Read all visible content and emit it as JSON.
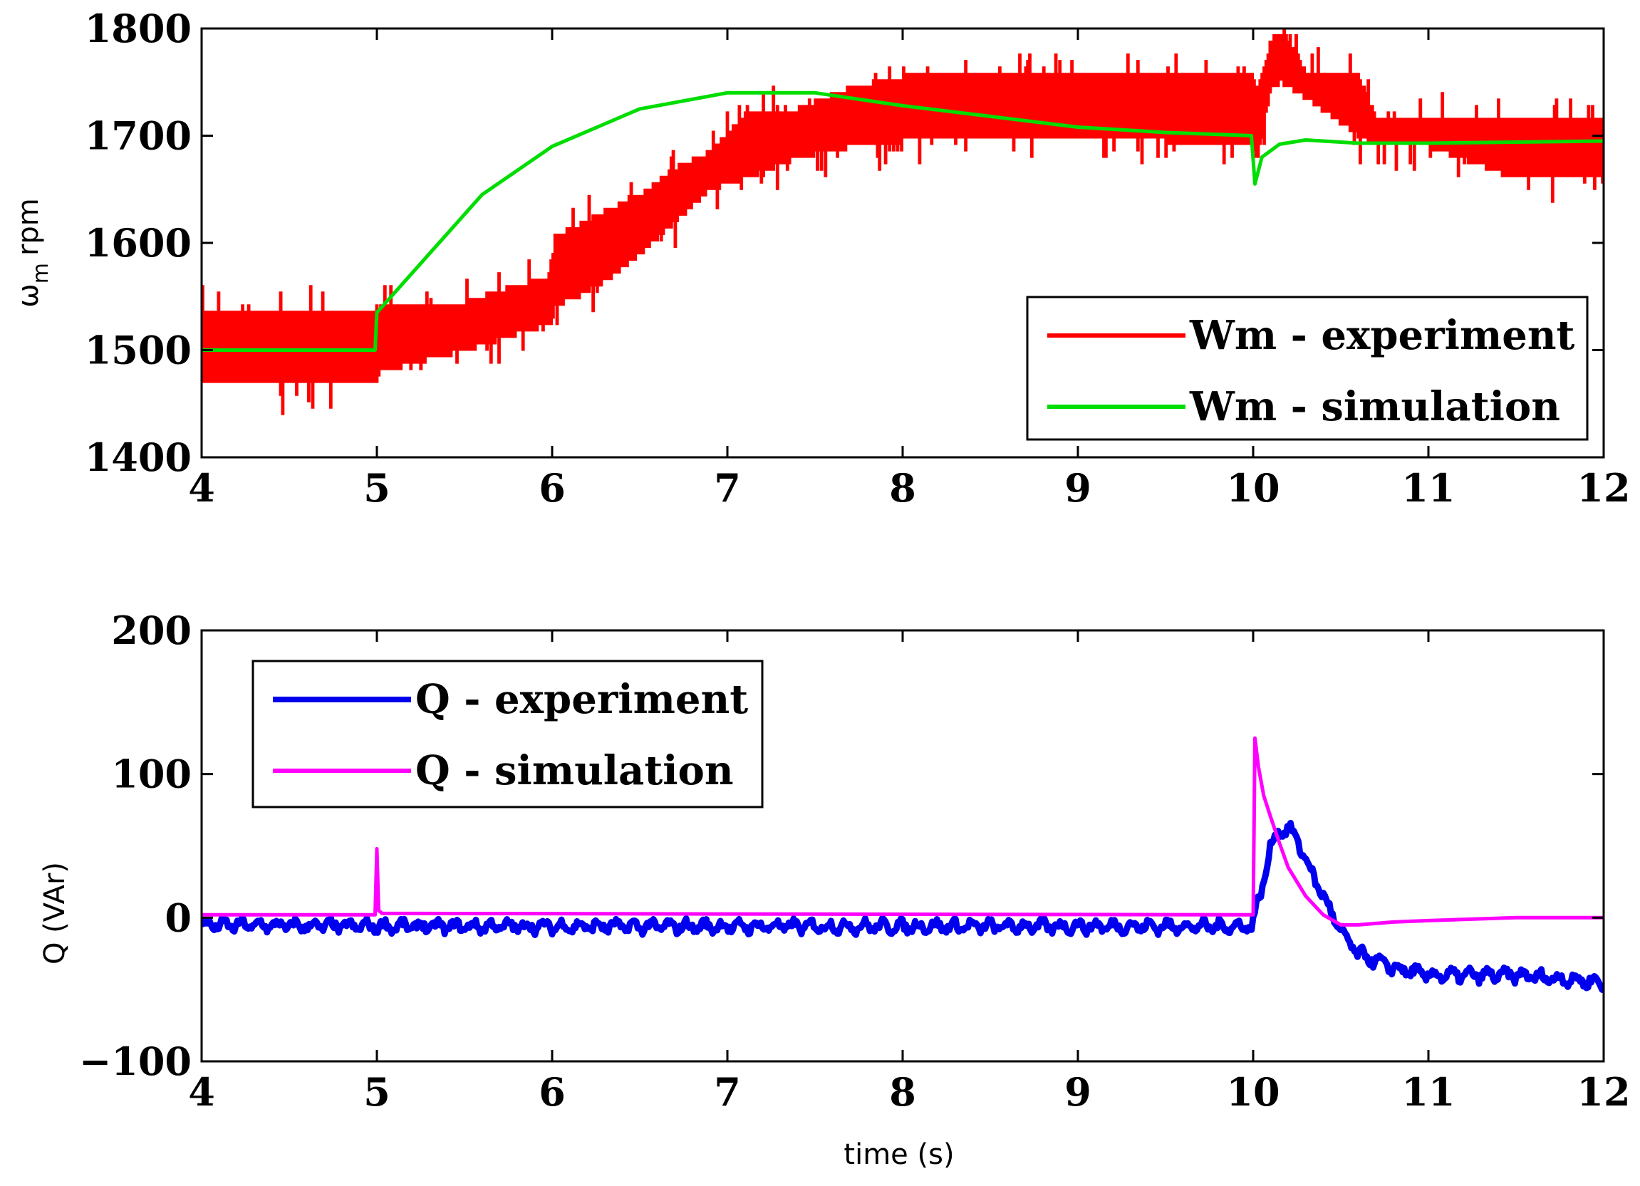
{
  "chart_data": [
    {
      "type": "line",
      "title": "",
      "xlabel": "",
      "ylabel": "ωm rpm",
      "ylabel_parts": {
        "symbol": "ω",
        "subscript": "m",
        "unit": "rpm"
      },
      "xlim": [
        4,
        12
      ],
      "ylim": [
        1400,
        1800
      ],
      "xticks": [
        4,
        5,
        6,
        7,
        8,
        9,
        10,
        11,
        12
      ],
      "yticks": [
        1400,
        1500,
        1600,
        1700,
        1800
      ],
      "legend_position": "bottom-right",
      "series": [
        {
          "name": "Wm - experiment",
          "color": "#ff0000",
          "band": true,
          "x": [
            4.0,
            4.5,
            4.99,
            5.01,
            5.5,
            5.99,
            6.01,
            6.3,
            6.5,
            6.7,
            6.9,
            7.1,
            7.4,
            7.7,
            8.0,
            8.5,
            9.0,
            9.5,
            9.99,
            10.02,
            10.1,
            10.15,
            10.2,
            10.3,
            10.6,
            10.7,
            11.0,
            11.5,
            12.0
          ],
          "low": [
            1467,
            1467,
            1467,
            1480,
            1500,
            1525,
            1540,
            1565,
            1590,
            1620,
            1650,
            1660,
            1680,
            1690,
            1695,
            1700,
            1700,
            1695,
            1690,
            1680,
            1745,
            1750,
            1745,
            1735,
            1700,
            1690,
            1690,
            1660,
            1660
          ],
          "high": [
            1535,
            1535,
            1535,
            1540,
            1545,
            1570,
            1605,
            1630,
            1645,
            1670,
            1685,
            1720,
            1725,
            1745,
            1755,
            1755,
            1755,
            1755,
            1755,
            1745,
            1790,
            1795,
            1790,
            1758,
            1755,
            1715,
            1715,
            1715,
            1715
          ]
        },
        {
          "name": "Wm - simulation",
          "color": "#00dd00",
          "x": [
            4.0,
            4.5,
            4.99,
            5.0,
            5.3,
            5.6,
            6.0,
            6.5,
            7.0,
            7.5,
            8.0,
            8.5,
            9.0,
            9.5,
            9.99,
            10.01,
            10.05,
            10.15,
            10.3,
            10.6,
            11.0,
            11.5,
            12.0
          ],
          "y": [
            1500,
            1500,
            1500,
            1535,
            1590,
            1645,
            1690,
            1725,
            1740,
            1740,
            1728,
            1718,
            1708,
            1703,
            1700,
            1655,
            1680,
            1692,
            1696,
            1693,
            1693,
            1694,
            1695
          ]
        }
      ]
    },
    {
      "type": "line",
      "title": "",
      "xlabel": "time (s)",
      "ylabel": "Q (VAr)",
      "xlim": [
        4,
        12
      ],
      "ylim": [
        -100,
        200
      ],
      "xticks": [
        4,
        5,
        6,
        7,
        8,
        9,
        10,
        11,
        12
      ],
      "yticks": [
        -100,
        0,
        100,
        200
      ],
      "ytick_labels": [
        "−100",
        "0",
        "100",
        "200"
      ],
      "legend_position": "top-left",
      "series": [
        {
          "name": "Q - experiment",
          "color": "#0000ee",
          "noisy": true,
          "x": [
            4.0,
            5.0,
            6.0,
            7.0,
            8.0,
            9.0,
            9.99,
            10.05,
            10.1,
            10.15,
            10.2,
            10.25,
            10.3,
            10.4,
            10.5,
            10.6,
            10.8,
            11.0,
            11.5,
            12.0
          ],
          "y": [
            -5,
            -6,
            -6,
            -6,
            -6,
            -6,
            -6,
            20,
            50,
            60,
            62,
            55,
            40,
            15,
            -10,
            -25,
            -35,
            -40,
            -40,
            -45
          ]
        },
        {
          "name": "Q - simulation",
          "color": "#ff00ff",
          "x": [
            4.0,
            4.99,
            5.0,
            5.01,
            5.03,
            10.0,
            10.01,
            10.03,
            10.06,
            10.1,
            10.15,
            10.2,
            10.3,
            10.4,
            10.5,
            10.6,
            10.8,
            11.0,
            11.5,
            12.0
          ],
          "y": [
            2,
            2,
            48,
            5,
            3,
            2,
            125,
            105,
            85,
            70,
            52,
            35,
            15,
            2,
            -5,
            -5,
            -3,
            -2,
            0,
            0
          ]
        }
      ]
    }
  ]
}
